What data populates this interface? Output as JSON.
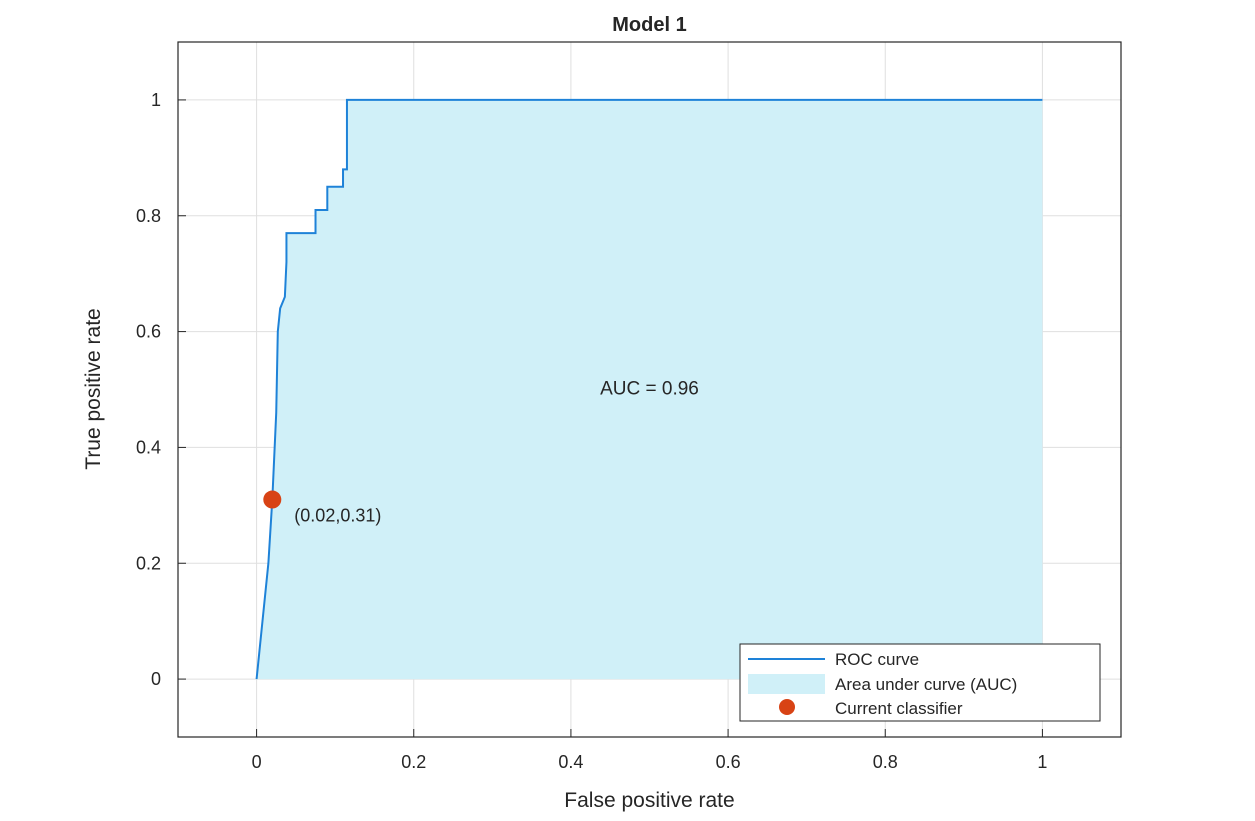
{
  "chart_data": {
    "type": "line",
    "title": "Model 1",
    "xlabel": "False positive rate",
    "ylabel": "True positive rate",
    "xlim": [
      -0.1,
      1.1
    ],
    "ylim": [
      -0.1,
      1.1
    ],
    "xticks": [
      0,
      0.2,
      0.4,
      0.6,
      0.8,
      1
    ],
    "xtick_labels": [
      "0",
      "0.2",
      "0.4",
      "0.6",
      "0.8",
      "1"
    ],
    "yticks": [
      0,
      0.2,
      0.4,
      0.6,
      0.8,
      1
    ],
    "ytick_labels": [
      "0",
      "0.2",
      "0.4",
      "0.6",
      "0.8",
      "1"
    ],
    "grid": true,
    "legend_position": "bottom-right",
    "series": [
      {
        "name": "ROC curve",
        "color": "#1e82d8",
        "x": [
          0,
          0.015,
          0.02,
          0.025,
          0.027,
          0.03,
          0.033,
          0.036,
          0.038,
          0.038,
          0.04,
          0.075,
          0.075,
          0.09,
          0.09,
          0.11,
          0.11,
          0.115,
          0.115,
          1.0
        ],
        "y": [
          0,
          0.2,
          0.31,
          0.46,
          0.6,
          0.64,
          0.65,
          0.66,
          0.72,
          0.77,
          0.77,
          0.77,
          0.81,
          0.81,
          0.85,
          0.85,
          0.88,
          0.88,
          1.0,
          1.0
        ]
      },
      {
        "name": "Area under curve (AUC)",
        "color": "#d0f0f8",
        "x": [
          0,
          0.015,
          0.02,
          0.025,
          0.027,
          0.03,
          0.033,
          0.036,
          0.038,
          0.038,
          0.04,
          0.075,
          0.075,
          0.09,
          0.09,
          0.11,
          0.11,
          0.115,
          0.115,
          1.0
        ],
        "y": [
          0,
          0.2,
          0.31,
          0.46,
          0.6,
          0.64,
          0.65,
          0.66,
          0.72,
          0.77,
          0.77,
          0.77,
          0.81,
          0.81,
          0.85,
          0.85,
          0.88,
          0.88,
          1.0,
          1.0
        ]
      },
      {
        "name": "Current classifier",
        "color": "#d84315",
        "x": [
          0.02
        ],
        "y": [
          0.31
        ]
      }
    ],
    "annotations": [
      {
        "text": "AUC = 0.96",
        "x": 0.5,
        "y": 0.5
      },
      {
        "text": "(0.02,0.31)",
        "x": 0.11,
        "y": 0.28
      }
    ]
  }
}
